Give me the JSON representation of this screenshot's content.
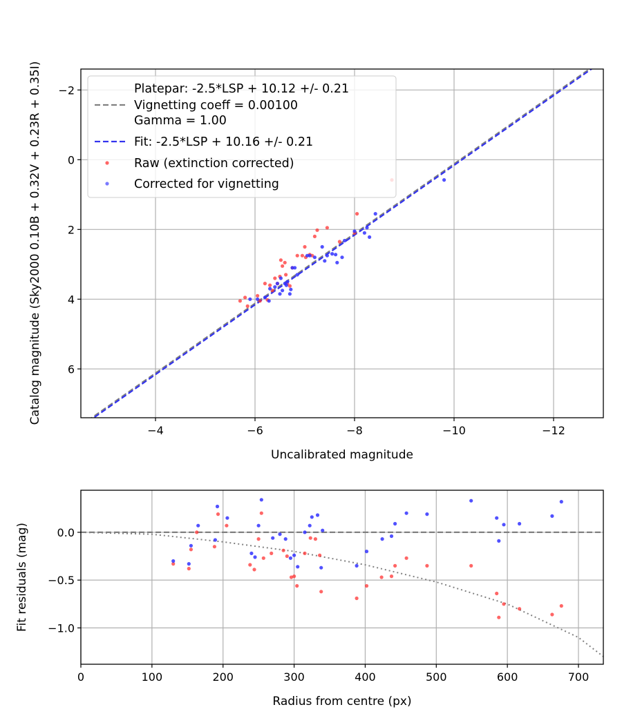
{
  "chart_data": [
    {
      "type": "scatter",
      "xlabel": "Uncalibrated magnitude",
      "ylabel": "Catalog magnitude (Sky2000 0.10B + 0.32V + 0.23R + 0.35I)",
      "xlim": [
        -2.5,
        -13.0
      ],
      "ylim": [
        7.4,
        -2.6
      ],
      "x_inverted": true,
      "y_inverted": true,
      "grid": true,
      "xticks": [
        -4,
        -6,
        -8,
        -10,
        -12
      ],
      "xtick_labels": [
        "−4",
        "−6",
        "−8",
        "−10",
        "−12"
      ],
      "yticks": [
        -2,
        0,
        2,
        4,
        6
      ],
      "ytick_labels": [
        "−2",
        "0",
        "2",
        "4",
        "6"
      ],
      "legend_position": "top-left",
      "legend": {
        "platepar_line1": "Platepar: -2.5*LSP + 10.12 +/- 0.21",
        "platepar_line2": "Vignetting coeff = 0.00100",
        "platepar_line3": "Gamma = 1.00",
        "fit": "Fit: -2.5*LSP + 10.16 +/- 0.21",
        "raw": "Raw (extinction corrected)",
        "corrected": "Corrected for vignetting"
      },
      "lines": [
        {
          "slope": -2.5,
          "intercept": 10.12,
          "style": "dashed",
          "color": "#808080"
        },
        {
          "slope": -2.5,
          "intercept": 10.16,
          "style": "dashed",
          "color": "#3333ee"
        }
      ],
      "series": [
        {
          "color": "#ff3333",
          "points": [
            [
              -5.7,
              4.05
            ],
            [
              -5.8,
              3.95
            ],
            [
              -5.85,
              4.2
            ],
            [
              -6.05,
              3.9
            ],
            [
              -6.1,
              4.05
            ],
            [
              -6.2,
              3.55
            ],
            [
              -6.25,
              4.02
            ],
            [
              -6.3,
              3.6
            ],
            [
              -6.35,
              3.75
            ],
            [
              -6.4,
              3.4
            ],
            [
              -6.45,
              3.55
            ],
            [
              -6.5,
              3.35
            ],
            [
              -6.52,
              2.88
            ],
            [
              -6.55,
              3.05
            ],
            [
              -6.6,
              2.95
            ],
            [
              -6.62,
              3.3
            ],
            [
              -6.65,
              3.55
            ],
            [
              -6.7,
              3.62
            ],
            [
              -6.75,
              3.1
            ],
            [
              -6.85,
              2.75
            ],
            [
              -6.95,
              2.75
            ],
            [
              -7.0,
              2.5
            ],
            [
              -7.02,
              2.8
            ],
            [
              -7.1,
              2.72
            ],
            [
              -7.15,
              2.75
            ],
            [
              -7.2,
              2.2
            ],
            [
              -7.25,
              2.02
            ],
            [
              -7.45,
              1.95
            ],
            [
              -7.7,
              2.35
            ],
            [
              -8.0,
              2.1
            ],
            [
              -8.05,
              1.55
            ],
            [
              -8.75,
              0.58
            ]
          ]
        },
        {
          "color": "#3333ff",
          "points": [
            [
              -5.9,
              4.0
            ],
            [
              -6.05,
              4.0
            ],
            [
              -6.2,
              3.95
            ],
            [
              -6.28,
              4.05
            ],
            [
              -6.3,
              3.7
            ],
            [
              -6.4,
              3.65
            ],
            [
              -6.45,
              3.55
            ],
            [
              -6.5,
              3.85
            ],
            [
              -6.52,
              3.4
            ],
            [
              -6.55,
              3.75
            ],
            [
              -6.6,
              3.55
            ],
            [
              -6.63,
              3.6
            ],
            [
              -6.65,
              3.5
            ],
            [
              -6.7,
              3.85
            ],
            [
              -6.72,
              3.72
            ],
            [
              -6.75,
              3.1
            ],
            [
              -6.8,
              3.1
            ],
            [
              -6.85,
              3.3
            ],
            [
              -7.05,
              2.75
            ],
            [
              -7.1,
              2.75
            ],
            [
              -7.2,
              2.8
            ],
            [
              -7.35,
              2.5
            ],
            [
              -7.4,
              2.9
            ],
            [
              -7.45,
              2.75
            ],
            [
              -7.55,
              2.7
            ],
            [
              -7.62,
              2.72
            ],
            [
              -7.65,
              2.95
            ],
            [
              -7.75,
              2.8
            ],
            [
              -7.8,
              2.32
            ],
            [
              -8.0,
              2.05
            ],
            [
              -8.2,
              2.1
            ],
            [
              -8.25,
              1.95
            ],
            [
              -8.3,
              2.22
            ],
            [
              -8.42,
              1.55
            ],
            [
              -9.8,
              0.58
            ]
          ]
        }
      ]
    },
    {
      "type": "scatter",
      "xlabel": "Radius from centre (px)",
      "ylabel": "Fit residuals (mag)",
      "xlim": [
        0,
        735
      ],
      "ylim": [
        -1.38,
        0.44
      ],
      "grid": true,
      "xticks": [
        0,
        100,
        200,
        300,
        400,
        500,
        600,
        700
      ],
      "xtick_labels": [
        "0",
        "100",
        "200",
        "300",
        "400",
        "500",
        "600",
        "700"
      ],
      "yticks": [
        0.0,
        -0.5,
        -1.0
      ],
      "ytick_labels": [
        "0.0",
        "−0.5",
        "−1.0"
      ],
      "lines": [
        {
          "type": "horizontal",
          "y": 0.0,
          "style": "dashed",
          "color": "#808080"
        },
        {
          "type": "curve",
          "style": "dotted",
          "color": "#808080",
          "points": [
            [
              0,
              0.0
            ],
            [
              100,
              -0.02
            ],
            [
              200,
              -0.1
            ],
            [
              300,
              -0.2
            ],
            [
              400,
              -0.34
            ],
            [
              500,
              -0.52
            ],
            [
              600,
              -0.75
            ],
            [
              700,
              -1.1
            ],
            [
              735,
              -1.3
            ]
          ]
        }
      ],
      "series": [
        {
          "color": "#ff3333",
          "points": [
            [
              130,
              -0.33
            ],
            [
              152,
              -0.38
            ],
            [
              155,
              -0.18
            ],
            [
              163,
              0.0
            ],
            [
              188,
              -0.15
            ],
            [
              193,
              0.19
            ],
            [
              205,
              0.07
            ],
            [
              238,
              -0.34
            ],
            [
              244,
              -0.39
            ],
            [
              250,
              -0.07
            ],
            [
              254,
              0.2
            ],
            [
              257,
              -0.27
            ],
            [
              268,
              -0.22
            ],
            [
              285,
              -0.19
            ],
            [
              290,
              -0.25
            ],
            [
              296,
              -0.47
            ],
            [
              300,
              -0.46
            ],
            [
              304,
              -0.56
            ],
            [
              315,
              -0.22
            ],
            [
              323,
              -0.06
            ],
            [
              330,
              -0.07
            ],
            [
              336,
              -0.24
            ],
            [
              338,
              -0.62
            ],
            [
              388,
              -0.69
            ],
            [
              402,
              -0.56
            ],
            [
              423,
              -0.47
            ],
            [
              437,
              -0.46
            ],
            [
              442,
              -0.35
            ],
            [
              458,
              -0.27
            ],
            [
              487,
              -0.35
            ],
            [
              549,
              -0.35
            ],
            [
              585,
              -0.64
            ],
            [
              588,
              -0.89
            ],
            [
              595,
              -0.75
            ],
            [
              617,
              -0.8
            ],
            [
              663,
              -0.86
            ],
            [
              676,
              -0.77
            ]
          ]
        },
        {
          "color": "#3333ff",
          "points": [
            [
              130,
              -0.3
            ],
            [
              152,
              -0.33
            ],
            [
              155,
              -0.14
            ],
            [
              165,
              0.07
            ],
            [
              189,
              -0.08
            ],
            [
              192,
              0.27
            ],
            [
              206,
              0.15
            ],
            [
              240,
              -0.22
            ],
            [
              245,
              -0.26
            ],
            [
              250,
              0.07
            ],
            [
              254,
              0.34
            ],
            [
              270,
              -0.06
            ],
            [
              280,
              -0.02
            ],
            [
              288,
              -0.07
            ],
            [
              295,
              -0.27
            ],
            [
              300,
              -0.24
            ],
            [
              305,
              -0.36
            ],
            [
              315,
              0.0
            ],
            [
              322,
              0.07
            ],
            [
              325,
              0.16
            ],
            [
              333,
              0.18
            ],
            [
              338,
              -0.37
            ],
            [
              340,
              0.02
            ],
            [
              388,
              -0.35
            ],
            [
              402,
              -0.2
            ],
            [
              424,
              -0.07
            ],
            [
              437,
              -0.04
            ],
            [
              442,
              0.09
            ],
            [
              458,
              0.2
            ],
            [
              487,
              0.19
            ],
            [
              549,
              0.33
            ],
            [
              585,
              0.15
            ],
            [
              588,
              -0.09
            ],
            [
              595,
              0.08
            ],
            [
              617,
              0.09
            ],
            [
              663,
              0.17
            ],
            [
              676,
              0.32
            ]
          ]
        }
      ]
    }
  ]
}
